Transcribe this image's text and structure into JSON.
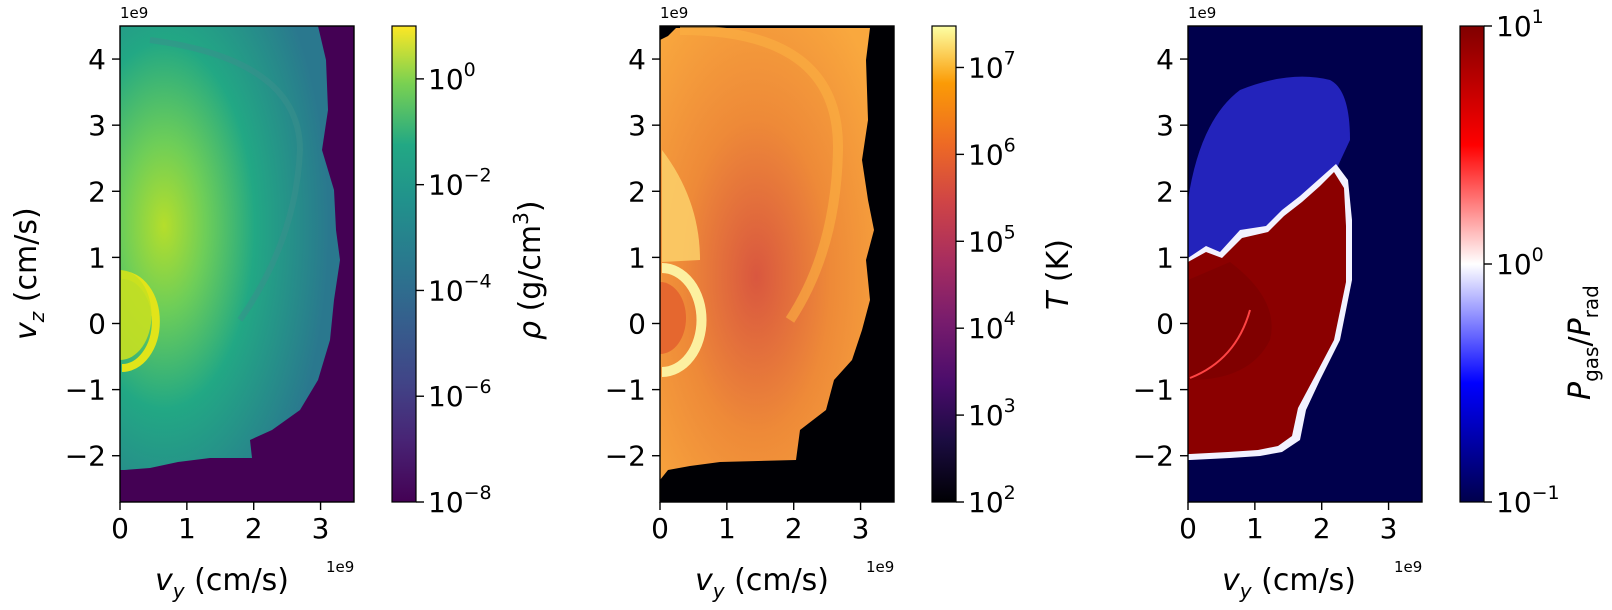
{
  "chart_data": [
    {
      "type": "heatmap",
      "name": "density",
      "title": "",
      "xlabel": "v_y (cm/s)",
      "ylabel": "v_z (cm/s)",
      "x_offset_label": "1e9",
      "y_offset_label": "1e9",
      "xlim": [
        0,
        3.5
      ],
      "ylim": [
        -2.7,
        4.5
      ],
      "xticks": [
        "0",
        "1",
        "2",
        "3"
      ],
      "xtick_values": [
        0,
        1,
        2,
        3
      ],
      "yticks": [
        "−2",
        "−1",
        "0",
        "1",
        "2",
        "3",
        "4"
      ],
      "ytick_values": [
        -2,
        -1,
        0,
        1,
        2,
        3,
        4
      ],
      "colorbar": {
        "label": "ρ (g/cm³)",
        "scale": "log",
        "cmap": "viridis",
        "range": [
          1e-08,
          10
        ],
        "tick_mantissa": [
          "10",
          "10",
          "10",
          "10",
          "10"
        ],
        "tick_exponents": [
          "−8",
          "−6",
          "−4",
          "−2",
          "0"
        ],
        "tick_log_values": [
          -8,
          -6,
          -4,
          -2,
          0
        ]
      },
      "colors": {
        "background": "#440154",
        "outer": "#2b7d8e",
        "mid": "#22a884",
        "inner": "#7ad151",
        "core": "#c5e021",
        "ring": "#e6e419"
      }
    },
    {
      "type": "heatmap",
      "name": "temperature",
      "title": "",
      "xlabel": "v_y (cm/s)",
      "ylabel": "",
      "x_offset_label": "1e9",
      "y_offset_label": "1e9",
      "xlim": [
        0,
        3.5
      ],
      "ylim": [
        -2.7,
        4.5
      ],
      "xticks": [
        "0",
        "1",
        "2",
        "3"
      ],
      "xtick_values": [
        0,
        1,
        2,
        3
      ],
      "yticks": [
        "−2",
        "−1",
        "0",
        "1",
        "2",
        "3",
        "4"
      ],
      "ytick_values": [
        -2,
        -1,
        0,
        1,
        2,
        3,
        4
      ],
      "colorbar": {
        "label": "T (K)",
        "scale": "log",
        "cmap": "inferno",
        "range": [
          100,
          30000000
        ],
        "tick_mantissa": [
          "10",
          "10",
          "10",
          "10",
          "10",
          "10"
        ],
        "tick_exponents": [
          "2",
          "3",
          "4",
          "5",
          "6",
          "7"
        ],
        "tick_log_values": [
          2,
          3,
          4,
          5,
          6,
          7
        ]
      },
      "colors": {
        "background": "#000004",
        "outer": "#f8a33c",
        "mid": "#ef8f33",
        "inner": "#e4733a",
        "core": "#f8d870",
        "ring": "#fcf0a0"
      }
    },
    {
      "type": "heatmap",
      "name": "pressure_ratio",
      "title": "",
      "xlabel": "v_y (cm/s)",
      "ylabel": "",
      "x_offset_label": "1e9",
      "y_offset_label": "1e9",
      "xlim": [
        0,
        3.5
      ],
      "ylim": [
        -2.7,
        4.5
      ],
      "xticks": [
        "0",
        "1",
        "2",
        "3"
      ],
      "xtick_values": [
        0,
        1,
        2,
        3
      ],
      "yticks": [
        "−2",
        "−1",
        "0",
        "1",
        "2",
        "3",
        "4"
      ],
      "ytick_values": [
        -2,
        -1,
        0,
        1,
        2,
        3,
        4
      ],
      "colorbar": {
        "label": "P_gas/P_rad",
        "scale": "log",
        "cmap": "seismic",
        "range": [
          0.1,
          10
        ],
        "tick_mantissa": [
          "10",
          "10",
          "10"
        ],
        "tick_exponents": [
          "−1",
          "0",
          "1"
        ],
        "tick_log_values": [
          -1,
          0,
          1
        ]
      },
      "colors": {
        "background": "#00004c",
        "halo": "#3a3aff",
        "edge": "#ffffff",
        "core": "#8b0000"
      }
    }
  ]
}
